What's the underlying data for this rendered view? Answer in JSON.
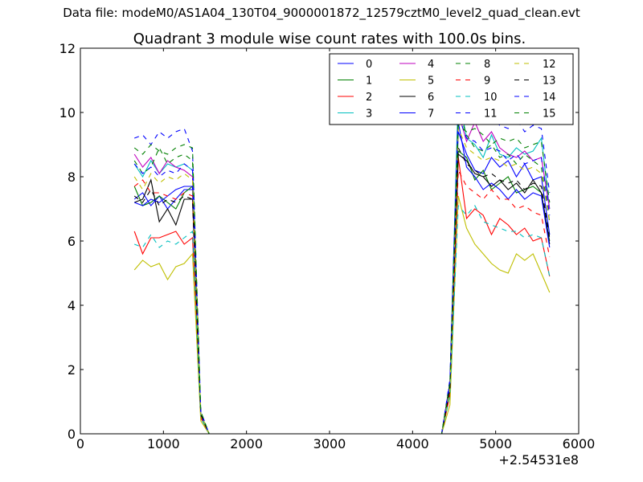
{
  "supertitle": "Data file: modeM0/AS1A04_130T04_9000001872_12579cztM0_level2_quad_clean.evt",
  "chart_data": {
    "type": "line",
    "title": "Quadrant 3 module wise count rates with 100.0s bins.",
    "xlabel": "",
    "ylabel": "",
    "offset_label": "+2.54531e8",
    "xlim": [
      0,
      6000
    ],
    "ylim": [
      0,
      12
    ],
    "xticks": [
      "0",
      "1000",
      "2000",
      "3000",
      "4000",
      "5000",
      "6000"
    ],
    "yticks": [
      "0",
      "2",
      "4",
      "6",
      "8",
      "10",
      "12"
    ],
    "grid": false,
    "legend_position": "top-right",
    "x": [
      650,
      750,
      850,
      950,
      1050,
      1150,
      1250,
      1350,
      1450,
      1550,
      1650,
      1750,
      1850,
      1950,
      2050,
      2150,
      2250,
      2350,
      2450,
      2550,
      2650,
      2750,
      2850,
      2950,
      3050,
      3150,
      3250,
      3350,
      3450,
      3550,
      3650,
      3750,
      3850,
      3950,
      4050,
      4150,
      4250,
      4350,
      4450,
      4550,
      4650,
      4750,
      4850,
      4950,
      5050,
      5150,
      5250,
      5350,
      5450,
      5550,
      5650
    ],
    "series": [
      {
        "name": "0",
        "color": "#0000ff",
        "dash": "solid",
        "values": [
          7.3,
          7.5,
          7.1,
          7.4,
          7.0,
          7.3,
          7.6,
          7.6,
          0.6,
          0,
          0,
          0,
          0,
          0,
          0,
          0,
          0,
          0,
          0,
          0,
          0,
          0,
          0,
          0,
          0,
          0,
          0,
          0,
          0,
          0,
          0,
          0,
          0,
          0,
          0,
          0,
          0,
          0,
          1.5,
          9.4,
          8.7,
          8.2,
          8.1,
          8.6,
          8.3,
          8.5,
          8.0,
          8.4,
          7.9,
          8.0,
          6.2
        ]
      },
      {
        "name": "1",
        "color": "#008000",
        "dash": "solid",
        "values": [
          7.7,
          7.1,
          7.2,
          7.4,
          7.2,
          7.0,
          7.5,
          7.7,
          0.6,
          0,
          0,
          0,
          0,
          0,
          0,
          0,
          0,
          0,
          0,
          0,
          0,
          0,
          0,
          0,
          0,
          0,
          0,
          0,
          0,
          0,
          0,
          0,
          0,
          0,
          0,
          0,
          0,
          0,
          1.5,
          8.8,
          8.6,
          7.9,
          8.2,
          7.6,
          7.8,
          8.0,
          7.5,
          7.6,
          7.7,
          7.5,
          6.0
        ]
      },
      {
        "name": "2",
        "color": "#ff0000",
        "dash": "solid",
        "values": [
          6.3,
          5.6,
          6.1,
          6.1,
          6.2,
          6.3,
          5.9,
          6.1,
          0.5,
          0,
          0,
          0,
          0,
          0,
          0,
          0,
          0,
          0,
          0,
          0,
          0,
          0,
          0,
          0,
          0,
          0,
          0,
          0,
          0,
          0,
          0,
          0,
          0,
          0,
          0,
          0,
          0,
          0,
          1.2,
          8.6,
          6.7,
          7.0,
          6.8,
          6.2,
          6.7,
          6.5,
          6.2,
          6.4,
          6.0,
          6.1,
          4.9
        ]
      },
      {
        "name": "3",
        "color": "#00bfbf",
        "dash": "solid",
        "values": [
          8.4,
          8.0,
          8.5,
          8.1,
          8.4,
          8.3,
          8.4,
          8.2,
          0.6,
          0,
          0,
          0,
          0,
          0,
          0,
          0,
          0,
          0,
          0,
          0,
          0,
          0,
          0,
          0,
          0,
          0,
          0,
          0,
          0,
          0,
          0,
          0,
          0,
          0,
          0,
          0,
          0,
          0,
          1.6,
          10.6,
          9.2,
          9.0,
          8.6,
          9.3,
          8.7,
          8.6,
          8.9,
          8.7,
          8.8,
          9.2,
          7.0
        ]
      },
      {
        "name": "4",
        "color": "#bf00bf",
        "dash": "solid",
        "values": [
          8.7,
          8.3,
          8.6,
          8.1,
          8.5,
          8.3,
          8.2,
          8.0,
          0.6,
          0,
          0,
          0,
          0,
          0,
          0,
          0,
          0,
          0,
          0,
          0,
          0,
          0,
          0,
          0,
          0,
          0,
          0,
          0,
          0,
          0,
          0,
          0,
          0,
          0,
          0,
          0,
          0,
          0,
          1.6,
          10.0,
          9.1,
          9.7,
          9.1,
          9.4,
          8.9,
          8.7,
          8.6,
          8.8,
          8.5,
          8.6,
          7.0
        ]
      },
      {
        "name": "5",
        "color": "#bfbf00",
        "dash": "solid",
        "values": [
          5.1,
          5.4,
          5.2,
          5.3,
          4.8,
          5.2,
          5.3,
          5.6,
          0.4,
          0,
          0,
          0,
          0,
          0,
          0,
          0,
          0,
          0,
          0,
          0,
          0,
          0,
          0,
          0,
          0,
          0,
          0,
          0,
          0,
          0,
          0,
          0,
          0,
          0,
          0,
          0,
          0,
          0,
          0.9,
          7.4,
          6.4,
          5.9,
          5.6,
          5.3,
          5.1,
          5.0,
          5.6,
          5.4,
          5.6,
          5.0,
          4.4
        ]
      },
      {
        "name": "6",
        "color": "#000000",
        "dash": "solid",
        "values": [
          7.2,
          7.3,
          7.9,
          6.6,
          7.0,
          6.5,
          7.3,
          7.3,
          0.6,
          0,
          0,
          0,
          0,
          0,
          0,
          0,
          0,
          0,
          0,
          0,
          0,
          0,
          0,
          0,
          0,
          0,
          0,
          0,
          0,
          0,
          0,
          0,
          0,
          0,
          0,
          0,
          0,
          0,
          1.4,
          8.7,
          8.5,
          8.1,
          8.0,
          7.7,
          7.9,
          7.6,
          7.8,
          7.5,
          7.9,
          7.5,
          5.9
        ]
      },
      {
        "name": "7",
        "color": "#0000ff",
        "dash": "solid",
        "values": [
          7.2,
          7.1,
          7.3,
          7.2,
          7.4,
          7.6,
          7.7,
          7.7,
          0.6,
          0,
          0,
          0,
          0,
          0,
          0,
          0,
          0,
          0,
          0,
          0,
          0,
          0,
          0,
          0,
          0,
          0,
          0,
          0,
          0,
          0,
          0,
          0,
          0,
          0,
          0,
          0,
          0,
          0,
          1.5,
          9.7,
          8.3,
          8.0,
          7.6,
          7.8,
          7.6,
          7.3,
          7.6,
          7.3,
          7.5,
          7.4,
          5.8
        ]
      },
      {
        "name": "8",
        "color": "#008000",
        "dash": "dashed",
        "values": [
          8.5,
          8.1,
          8.3,
          8.9,
          8.4,
          8.6,
          8.7,
          8.5,
          0.6,
          0,
          0,
          0,
          0,
          0,
          0,
          0,
          0,
          0,
          0,
          0,
          0,
          0,
          0,
          0,
          0,
          0,
          0,
          0,
          0,
          0,
          0,
          0,
          0,
          0,
          0,
          0,
          0,
          0,
          1.5,
          10.1,
          9.3,
          8.9,
          8.8,
          9.0,
          8.6,
          8.7,
          8.4,
          8.7,
          8.5,
          8.3,
          6.6
        ]
      },
      {
        "name": "9",
        "color": "#ff0000",
        "dash": "dashed",
        "values": [
          7.7,
          7.9,
          7.5,
          7.5,
          7.4,
          7.3,
          7.5,
          7.4,
          0.6,
          0,
          0,
          0,
          0,
          0,
          0,
          0,
          0,
          0,
          0,
          0,
          0,
          0,
          0,
          0,
          0,
          0,
          0,
          0,
          0,
          0,
          0,
          0,
          0,
          0,
          0,
          0,
          0,
          0,
          1.3,
          8.2,
          7.7,
          7.5,
          7.3,
          7.6,
          7.3,
          7.3,
          7.0,
          7.1,
          6.9,
          6.8,
          5.5
        ]
      },
      {
        "name": "10",
        "color": "#00bfbf",
        "dash": "dashed",
        "values": [
          5.9,
          5.8,
          6.2,
          5.8,
          6.0,
          5.9,
          6.1,
          6.3,
          0.5,
          0,
          0,
          0,
          0,
          0,
          0,
          0,
          0,
          0,
          0,
          0,
          0,
          0,
          0,
          0,
          0,
          0,
          0,
          0,
          0,
          0,
          0,
          0,
          0,
          0,
          0,
          0,
          0,
          0,
          1.2,
          7.1,
          6.8,
          7.1,
          6.6,
          6.5,
          6.4,
          6.3,
          6.3,
          6.1,
          6.2,
          6.1,
          4.9
        ]
      },
      {
        "name": "11",
        "color": "#0000ff",
        "dash": "dashed",
        "values": [
          8.4,
          8.1,
          8.3,
          8.0,
          8.2,
          8.1,
          8.4,
          8.2,
          0.6,
          0,
          0,
          0,
          0,
          0,
          0,
          0,
          0,
          0,
          0,
          0,
          0,
          0,
          0,
          0,
          0,
          0,
          0,
          0,
          0,
          0,
          0,
          0,
          0,
          0,
          0,
          0,
          0,
          0,
          1.6,
          9.9,
          9.2,
          9.1,
          8.8,
          8.9,
          8.8,
          8.5,
          8.7,
          8.4,
          8.5,
          8.6,
          6.8
        ]
      },
      {
        "name": "12",
        "color": "#bfbf00",
        "dash": "dashed",
        "values": [
          8.0,
          7.6,
          8.1,
          7.8,
          8.0,
          7.9,
          8.1,
          7.9,
          0.6,
          0,
          0,
          0,
          0,
          0,
          0,
          0,
          0,
          0,
          0,
          0,
          0,
          0,
          0,
          0,
          0,
          0,
          0,
          0,
          0,
          0,
          0,
          0,
          0,
          0,
          0,
          0,
          0,
          0,
          1.4,
          9.5,
          8.9,
          8.7,
          8.5,
          8.6,
          8.5,
          8.3,
          8.4,
          8.2,
          8.3,
          8.1,
          6.6
        ]
      },
      {
        "name": "13",
        "color": "#000000",
        "dash": "dashed",
        "values": [
          7.4,
          7.2,
          7.6,
          7.1,
          7.3,
          7.2,
          7.4,
          7.3,
          0.6,
          0,
          0,
          0,
          0,
          0,
          0,
          0,
          0,
          0,
          0,
          0,
          0,
          0,
          0,
          0,
          0,
          0,
          0,
          0,
          0,
          0,
          0,
          0,
          0,
          0,
          0,
          0,
          0,
          0,
          1.4,
          8.9,
          8.4,
          8.2,
          8.0,
          8.1,
          7.9,
          7.8,
          7.9,
          7.6,
          7.8,
          7.7,
          6.1
        ]
      },
      {
        "name": "14",
        "color": "#0000ff",
        "dash": "dashed",
        "values": [
          9.2,
          9.3,
          9.0,
          9.4,
          9.2,
          9.4,
          9.5,
          8.8,
          0.7,
          0,
          0,
          0,
          0,
          0,
          0,
          0,
          0,
          0,
          0,
          0,
          0,
          0,
          0,
          0,
          0,
          0,
          0,
          0,
          0,
          0,
          0,
          0,
          0,
          0,
          0,
          0,
          0,
          0,
          1.7,
          10.1,
          9.9,
          9.7,
          10.2,
          9.8,
          9.6,
          9.5,
          9.8,
          9.4,
          9.6,
          9.5,
          7.5
        ]
      },
      {
        "name": "15",
        "color": "#008000",
        "dash": "dashed",
        "values": [
          8.9,
          8.7,
          9.0,
          8.8,
          8.7,
          8.9,
          9.0,
          8.9,
          0.7,
          0,
          0,
          0,
          0,
          0,
          0,
          0,
          0,
          0,
          0,
          0,
          0,
          0,
          0,
          0,
          0,
          0,
          0,
          0,
          0,
          0,
          0,
          0,
          0,
          0,
          0,
          0,
          0,
          0,
          1.6,
          9.6,
          9.4,
          9.5,
          9.3,
          9.0,
          9.2,
          9.1,
          9.2,
          8.9,
          9.0,
          9.1,
          7.2
        ]
      }
    ]
  }
}
